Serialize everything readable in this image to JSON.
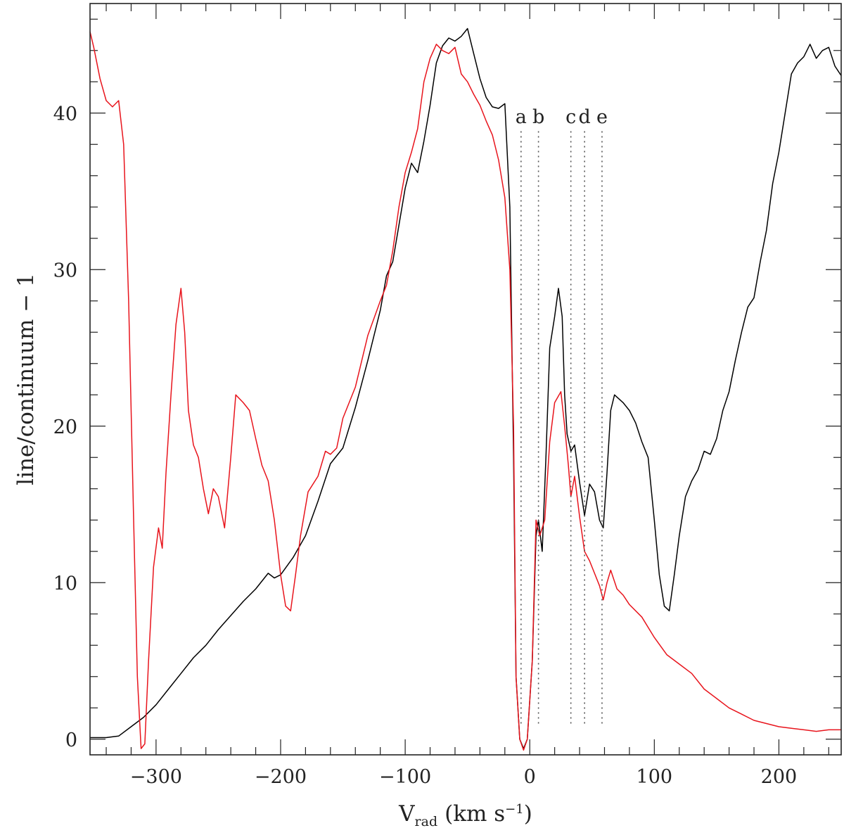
{
  "chart_data": {
    "type": "line",
    "xlabel": "V",
    "xlabel_sub": "rad",
    "xlabel_units": "(km s",
    "xlabel_sup": "−1",
    "xlabel_close": ")",
    "ylabel": "line/continuum − 1",
    "xlim": [
      -353,
      250
    ],
    "ylim": [
      -1,
      47
    ],
    "x_ticks": [
      -300,
      -200,
      -100,
      0,
      100,
      200
    ],
    "x_tick_labels": [
      "−300",
      "−200",
      "−100",
      "0",
      "100",
      "200"
    ],
    "y_ticks": [
      0,
      10,
      20,
      30,
      40
    ],
    "y_tick_labels": [
      "0",
      "10",
      "20",
      "30",
      "40"
    ],
    "colors": {
      "black": "#000000",
      "red": "#e8141c",
      "axes": "#222222",
      "marker": "#555555"
    },
    "markers": [
      {
        "label": "a",
        "x": -7
      },
      {
        "label": "b",
        "x": 7
      },
      {
        "label": "c",
        "x": 33
      },
      {
        "label": "d",
        "x": 44
      },
      {
        "label": "e",
        "x": 58
      }
    ],
    "marker_range": [
      1,
      39
    ],
    "series": [
      {
        "color": "#000000",
        "points": [
          [
            -353,
            0.1
          ],
          [
            -340,
            0.1
          ],
          [
            -330,
            0.2
          ],
          [
            -320,
            0.8
          ],
          [
            -310,
            1.4
          ],
          [
            -300,
            2.2
          ],
          [
            -290,
            3.2
          ],
          [
            -280,
            4.2
          ],
          [
            -270,
            5.2
          ],
          [
            -260,
            6.0
          ],
          [
            -250,
            7.0
          ],
          [
            -240,
            7.9
          ],
          [
            -230,
            8.8
          ],
          [
            -220,
            9.6
          ],
          [
            -210,
            10.6
          ],
          [
            -205,
            10.3
          ],
          [
            -200,
            10.5
          ],
          [
            -190,
            11.6
          ],
          [
            -180,
            13.0
          ],
          [
            -170,
            15.2
          ],
          [
            -160,
            17.6
          ],
          [
            -150,
            18.6
          ],
          [
            -140,
            21.2
          ],
          [
            -130,
            24.2
          ],
          [
            -120,
            27.4
          ],
          [
            -115,
            29.6
          ],
          [
            -110,
            30.5
          ],
          [
            -100,
            35.2
          ],
          [
            -95,
            36.8
          ],
          [
            -90,
            36.2
          ],
          [
            -85,
            38.2
          ],
          [
            -80,
            40.5
          ],
          [
            -75,
            43.2
          ],
          [
            -70,
            44.3
          ],
          [
            -65,
            44.8
          ],
          [
            -60,
            44.6
          ],
          [
            -55,
            44.9
          ],
          [
            -50,
            45.4
          ],
          [
            -45,
            43.8
          ],
          [
            -40,
            42.2
          ],
          [
            -35,
            41.0
          ],
          [
            -30,
            40.4
          ],
          [
            -25,
            40.3
          ],
          [
            -20,
            40.6
          ],
          [
            -16,
            34.0
          ],
          [
            -13,
            18.0
          ],
          [
            -11,
            4.0
          ],
          [
            -8,
            0.0
          ],
          [
            -5,
            -0.6
          ],
          [
            -2,
            0.0
          ],
          [
            2,
            5.0
          ],
          [
            5,
            13.0
          ],
          [
            7,
            14.0
          ],
          [
            10,
            12.0
          ],
          [
            13,
            18.0
          ],
          [
            16,
            25.0
          ],
          [
            20,
            27.0
          ],
          [
            23,
            28.8
          ],
          [
            26,
            27.0
          ],
          [
            28,
            22.0
          ],
          [
            30,
            19.5
          ],
          [
            33,
            18.4
          ],
          [
            36,
            18.8
          ],
          [
            40,
            16.4
          ],
          [
            44,
            14.3
          ],
          [
            48,
            16.3
          ],
          [
            52,
            15.8
          ],
          [
            56,
            14.0
          ],
          [
            59,
            13.5
          ],
          [
            62,
            17.0
          ],
          [
            65,
            21.0
          ],
          [
            68,
            22.0
          ],
          [
            75,
            21.5
          ],
          [
            80,
            21.0
          ],
          [
            85,
            20.2
          ],
          [
            90,
            19.0
          ],
          [
            95,
            18.0
          ],
          [
            100,
            14.0
          ],
          [
            104,
            10.5
          ],
          [
            108,
            8.5
          ],
          [
            112,
            8.2
          ],
          [
            116,
            10.5
          ],
          [
            120,
            13.0
          ],
          [
            125,
            15.5
          ],
          [
            130,
            16.5
          ],
          [
            135,
            17.2
          ],
          [
            140,
            18.4
          ],
          [
            145,
            18.2
          ],
          [
            150,
            19.2
          ],
          [
            155,
            21.0
          ],
          [
            160,
            22.2
          ],
          [
            165,
            24.2
          ],
          [
            170,
            26.0
          ],
          [
            175,
            27.6
          ],
          [
            180,
            28.2
          ],
          [
            185,
            30.5
          ],
          [
            190,
            32.5
          ],
          [
            195,
            35.5
          ],
          [
            200,
            37.5
          ],
          [
            205,
            40.0
          ],
          [
            210,
            42.5
          ],
          [
            215,
            43.2
          ],
          [
            220,
            43.6
          ],
          [
            225,
            44.4
          ],
          [
            230,
            43.5
          ],
          [
            235,
            44.0
          ],
          [
            240,
            44.2
          ],
          [
            245,
            43.0
          ],
          [
            250,
            42.4
          ]
        ]
      },
      {
        "color": "#e8141c",
        "points": [
          [
            -353,
            45.2
          ],
          [
            -350,
            44.2
          ],
          [
            -345,
            42.2
          ],
          [
            -340,
            40.8
          ],
          [
            -335,
            40.4
          ],
          [
            -330,
            40.8
          ],
          [
            -326,
            38.0
          ],
          [
            -322,
            28.0
          ],
          [
            -318,
            14.0
          ],
          [
            -315,
            4.0
          ],
          [
            -312,
            -0.6
          ],
          [
            -309,
            -0.3
          ],
          [
            -306,
            5.0
          ],
          [
            -302,
            11.0
          ],
          [
            -298,
            13.5
          ],
          [
            -295,
            12.2
          ],
          [
            -292,
            17.0
          ],
          [
            -288,
            22.0
          ],
          [
            -284,
            26.5
          ],
          [
            -280,
            28.8
          ],
          [
            -277,
            26.0
          ],
          [
            -274,
            21.0
          ],
          [
            -270,
            18.8
          ],
          [
            -266,
            18.0
          ],
          [
            -262,
            16.0
          ],
          [
            -258,
            14.4
          ],
          [
            -254,
            16.0
          ],
          [
            -250,
            15.5
          ],
          [
            -245,
            13.5
          ],
          [
            -240,
            18.0
          ],
          [
            -236,
            22.0
          ],
          [
            -230,
            21.5
          ],
          [
            -225,
            21.0
          ],
          [
            -220,
            19.2
          ],
          [
            -215,
            17.5
          ],
          [
            -210,
            16.5
          ],
          [
            -205,
            14.0
          ],
          [
            -200,
            10.5
          ],
          [
            -196,
            8.5
          ],
          [
            -192,
            8.2
          ],
          [
            -188,
            10.5
          ],
          [
            -184,
            13.0
          ],
          [
            -178,
            15.8
          ],
          [
            -170,
            16.8
          ],
          [
            -164,
            18.4
          ],
          [
            -160,
            18.2
          ],
          [
            -155,
            18.6
          ],
          [
            -150,
            20.5
          ],
          [
            -140,
            22.5
          ],
          [
            -130,
            25.8
          ],
          [
            -120,
            28.0
          ],
          [
            -115,
            29.0
          ],
          [
            -110,
            31.2
          ],
          [
            -105,
            34.0
          ],
          [
            -100,
            36.2
          ],
          [
            -95,
            37.5
          ],
          [
            -90,
            39.0
          ],
          [
            -85,
            42.0
          ],
          [
            -80,
            43.5
          ],
          [
            -75,
            44.4
          ],
          [
            -70,
            44.0
          ],
          [
            -65,
            43.8
          ],
          [
            -60,
            44.2
          ],
          [
            -55,
            42.5
          ],
          [
            -50,
            42.0
          ],
          [
            -45,
            41.2
          ],
          [
            -40,
            40.5
          ],
          [
            -35,
            39.5
          ],
          [
            -30,
            38.6
          ],
          [
            -25,
            37.0
          ],
          [
            -20,
            34.6
          ],
          [
            -16,
            30.0
          ],
          [
            -13,
            20.0
          ],
          [
            -11,
            4.0
          ],
          [
            -8,
            0.0
          ],
          [
            -5,
            -0.7
          ],
          [
            -2,
            0.0
          ],
          [
            2,
            5.0
          ],
          [
            5,
            14.0
          ],
          [
            8,
            13.0
          ],
          [
            12,
            14.0
          ],
          [
            16,
            19.0
          ],
          [
            20,
            21.5
          ],
          [
            25,
            22.2
          ],
          [
            28,
            20.0
          ],
          [
            31,
            17.5
          ],
          [
            33,
            15.5
          ],
          [
            36,
            16.8
          ],
          [
            40,
            14.2
          ],
          [
            44,
            12.0
          ],
          [
            48,
            11.4
          ],
          [
            52,
            10.6
          ],
          [
            56,
            9.8
          ],
          [
            59,
            8.9
          ],
          [
            62,
            10.0
          ],
          [
            65,
            10.8
          ],
          [
            70,
            9.6
          ],
          [
            75,
            9.2
          ],
          [
            80,
            8.6
          ],
          [
            90,
            7.8
          ],
          [
            100,
            6.5
          ],
          [
            110,
            5.4
          ],
          [
            120,
            4.8
          ],
          [
            130,
            4.2
          ],
          [
            140,
            3.2
          ],
          [
            150,
            2.6
          ],
          [
            160,
            2.0
          ],
          [
            170,
            1.6
          ],
          [
            180,
            1.2
          ],
          [
            190,
            1.0
          ],
          [
            200,
            0.8
          ],
          [
            210,
            0.7
          ],
          [
            220,
            0.6
          ],
          [
            230,
            0.5
          ],
          [
            240,
            0.6
          ],
          [
            250,
            0.6
          ]
        ]
      }
    ]
  }
}
